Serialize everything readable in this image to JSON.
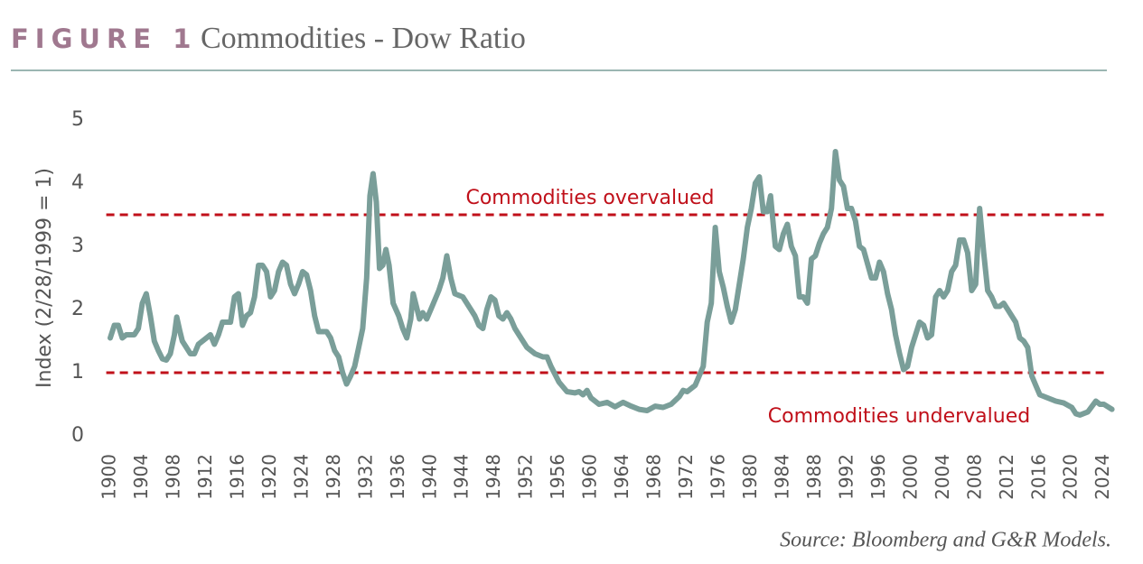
{
  "chart_data": {
    "type": "line",
    "figure_label": "FIGURE 1",
    "title": "Commodities - Dow Ratio",
    "y_label": "Index (2/28/1999 = 1)",
    "source": "Source: Bloomberg and G&R Models.",
    "color": "#7a9e99",
    "xlim": [
      1899.5,
      2025.5
    ],
    "ylim": [
      0,
      5
    ],
    "xticks": [
      1900,
      1904,
      1908,
      1912,
      1916,
      1920,
      1924,
      1928,
      1932,
      1936,
      1940,
      1944,
      1948,
      1952,
      1956,
      1960,
      1964,
      1968,
      1972,
      1976,
      1980,
      1984,
      1988,
      1992,
      1996,
      2000,
      2004,
      2008,
      2012,
      2016,
      2020,
      2024
    ],
    "yticks": [
      0,
      1,
      2,
      3,
      4,
      5
    ],
    "reference_lines": [
      {
        "value": 3.5,
        "label": "Commodities overvalued",
        "color": "#c0101a"
      },
      {
        "value": 1,
        "label": "Commodities undervalued",
        "color": "#c0101a"
      }
    ],
    "x": [
      1900,
      1900.5,
      1901,
      1901.5,
      1902,
      1903,
      1903.5,
      1904,
      1904.5,
      1905,
      1905.5,
      1906,
      1906.5,
      1907,
      1907.5,
      1908,
      1908.3,
      1908.7,
      1909,
      1910,
      1910.5,
      1911,
      1912,
      1912.5,
      1913,
      1913.5,
      1914,
      1915,
      1915.5,
      1916,
      1916.5,
      1917,
      1917.5,
      1918,
      1918.5,
      1919,
      1919.5,
      1920,
      1920.5,
      1921,
      1921.5,
      1922,
      1922.5,
      1923,
      1923.5,
      1924,
      1924.5,
      1925,
      1925.5,
      1926,
      1927,
      1927.5,
      1928,
      1928.5,
      1929,
      1929.5,
      1930,
      1930.5,
      1931,
      1931.5,
      1932,
      1932.4,
      1932.8,
      1933.2,
      1933.6,
      1934,
      1934.4,
      1934.8,
      1935.3,
      1936,
      1936.5,
      1937,
      1937.5,
      1937.8,
      1938.3,
      1938.6,
      1939,
      1939.5,
      1940,
      1941,
      1941.5,
      1942,
      1942.5,
      1943,
      1944,
      1945,
      1945.5,
      1946,
      1946.5,
      1947,
      1947.5,
      1948,
      1948.5,
      1949,
      1949.5,
      1950,
      1950.5,
      1951,
      1952,
      1953,
      1954,
      1954.5,
      1955,
      1956,
      1957,
      1958,
      1958.5,
      1959,
      1959.5,
      1960,
      1961,
      1962,
      1963,
      1964,
      1965,
      1966,
      1967,
      1968,
      1969,
      1970,
      1971,
      1971.5,
      1972,
      1973,
      1974,
      1974.5,
      1975,
      1975.5,
      1976,
      1976.5,
      1977,
      1977.5,
      1978,
      1979,
      1979.5,
      1980,
      1980.5,
      1981,
      1981.5,
      1982,
      1982.4,
      1983,
      1983.5,
      1984,
      1984.5,
      1985,
      1985.5,
      1986,
      1986.5,
      1987,
      1987.5,
      1988,
      1988.5,
      1989,
      1989.5,
      1990,
      1990.5,
      1991,
      1991.5,
      1992,
      1992.5,
      1993,
      1993.5,
      1994,
      1995,
      1995.5,
      1996,
      1996.5,
      1997,
      1997.5,
      1998,
      1998.5,
      1999,
      1999.5,
      2000,
      2001,
      2001.5,
      2002,
      2002.5,
      2003,
      2003.5,
      2004,
      2004.5,
      2005,
      2005.5,
      2006,
      2006.5,
      2007,
      2007.5,
      2008,
      2008.5,
      2009,
      2009.5,
      2010,
      2010.5,
      2011,
      2011.5,
      2012,
      2012.5,
      2013,
      2013.5,
      2014,
      2014.5,
      2015,
      2015.5,
      2016,
      2017,
      2018,
      2019,
      2020,
      2020.5,
      2021,
      2022,
      2023,
      2023.5,
      2024,
      2025
    ],
    "values": [
      1.55,
      1.75,
      1.75,
      1.55,
      1.6,
      1.6,
      1.7,
      2.1,
      2.25,
      1.9,
      1.5,
      1.35,
      1.22,
      1.2,
      1.3,
      1.6,
      1.88,
      1.65,
      1.5,
      1.3,
      1.3,
      1.45,
      1.55,
      1.6,
      1.45,
      1.6,
      1.8,
      1.8,
      2.2,
      2.25,
      1.75,
      1.9,
      1.95,
      2.2,
      2.7,
      2.7,
      2.6,
      2.2,
      2.3,
      2.6,
      2.75,
      2.7,
      2.4,
      2.25,
      2.4,
      2.6,
      2.55,
      2.3,
      1.9,
      1.65,
      1.65,
      1.55,
      1.35,
      1.25,
      1.0,
      0.82,
      0.95,
      1.1,
      1.4,
      1.7,
      2.5,
      3.8,
      4.15,
      3.7,
      2.65,
      2.7,
      2.95,
      2.7,
      2.1,
      1.9,
      1.7,
      1.55,
      1.85,
      2.25,
      2.0,
      1.85,
      1.95,
      1.85,
      2.0,
      2.3,
      2.5,
      2.85,
      2.5,
      2.25,
      2.2,
      2.0,
      1.9,
      1.75,
      1.7,
      2.0,
      2.2,
      2.15,
      1.9,
      1.85,
      1.95,
      1.85,
      1.7,
      1.6,
      1.4,
      1.3,
      1.25,
      1.25,
      1.1,
      0.85,
      0.7,
      0.68,
      0.7,
      0.65,
      0.72,
      0.6,
      0.5,
      0.53,
      0.46,
      0.53,
      0.47,
      0.42,
      0.4,
      0.47,
      0.45,
      0.5,
      0.62,
      0.72,
      0.7,
      0.8,
      1.1,
      1.8,
      2.1,
      3.3,
      2.6,
      2.35,
      2.05,
      1.8,
      2.0,
      2.8,
      3.3,
      3.6,
      4.0,
      4.1,
      3.55,
      3.55,
      3.8,
      3.0,
      2.95,
      3.2,
      3.35,
      3.0,
      2.85,
      2.2,
      2.2,
      2.1,
      2.8,
      2.85,
      3.05,
      3.2,
      3.3,
      3.6,
      4.5,
      4.05,
      3.95,
      3.6,
      3.6,
      3.4,
      3.0,
      2.95,
      2.5,
      2.5,
      2.75,
      2.6,
      2.25,
      2.0,
      1.6,
      1.3,
      1.05,
      1.1,
      1.4,
      1.8,
      1.75,
      1.55,
      1.6,
      2.2,
      2.3,
      2.2,
      2.3,
      2.6,
      2.7,
      3.1,
      3.1,
      2.9,
      2.3,
      2.4,
      3.6,
      2.9,
      2.3,
      2.2,
      2.05,
      2.05,
      2.1,
      2.0,
      1.9,
      1.8,
      1.55,
      1.5,
      1.4,
      0.95,
      0.8,
      0.65,
      0.6,
      0.55,
      0.52,
      0.45,
      0.35,
      0.33,
      0.38,
      0.55,
      0.5,
      0.5,
      0.42
    ]
  }
}
